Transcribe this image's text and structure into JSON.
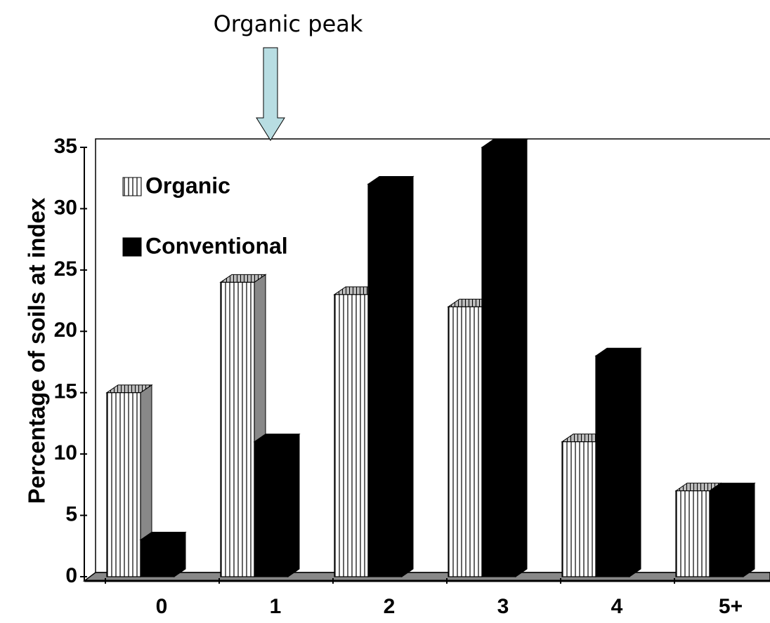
{
  "chart_data": {
    "type": "bar3d",
    "annotation": "Organic peak",
    "ylabel": "Percentage of soils at index",
    "categories": [
      "0",
      "1",
      "2",
      "3",
      "4",
      "5+"
    ],
    "series": [
      {
        "name": "Organic",
        "color": "#ffffff",
        "pattern": "vertical-stripes",
        "values": [
          15,
          24,
          23,
          22,
          11,
          7
        ]
      },
      {
        "name": "Conventional",
        "color": "#000000",
        "values": [
          3,
          11,
          32,
          35,
          18,
          7
        ]
      }
    ],
    "ylim": [
      0,
      35
    ],
    "yticks": [
      0,
      5,
      10,
      15,
      20,
      25,
      30,
      35
    ],
    "legend": "upper left"
  }
}
